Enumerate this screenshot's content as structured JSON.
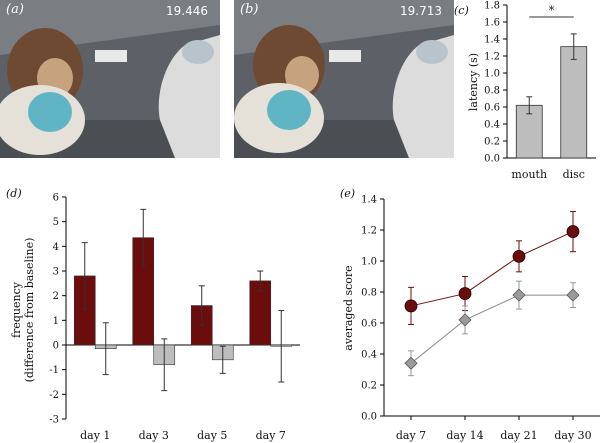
{
  "photos": [
    {
      "label": "(a)",
      "timestamp": "19.446"
    },
    {
      "label": "(b)",
      "timestamp": "19.713"
    }
  ],
  "colors": {
    "dark_red": "#6b0d0d",
    "grey": "#bdbdbd",
    "marker_grey": "#9a9a9a"
  },
  "chart_data": [
    {
      "panel": "(c)",
      "type": "bar",
      "categories": [
        "mouth",
        "disc"
      ],
      "values": [
        0.62,
        1.31
      ],
      "errors": [
        0.1,
        0.15
      ],
      "ylabel": "latency (s)",
      "ylim": [
        0,
        1.8
      ],
      "yticks": [
        0,
        0.2,
        0.4,
        0.6,
        0.8,
        1.0,
        1.2,
        1.4,
        1.6,
        1.8
      ],
      "annotation": "*"
    },
    {
      "panel": "(d)",
      "type": "bar",
      "categories": [
        "day 1",
        "day 3",
        "day 5",
        "day 7"
      ],
      "ylabel": "frequency",
      "ylabel2": "(difference from baseline)",
      "ylim": [
        -3,
        6
      ],
      "yticks": [
        -3,
        -2,
        -1,
        0,
        1,
        2,
        3,
        4,
        5,
        6
      ],
      "series": [
        {
          "color": "#6b0d0d",
          "values": [
            2.8,
            4.35,
            1.6,
            2.6
          ],
          "errors": [
            1.35,
            1.15,
            0.8,
            0.4
          ]
        },
        {
          "color": "#bdbdbd",
          "values": [
            -0.15,
            -0.8,
            -0.6,
            -0.05
          ],
          "errors": [
            1.05,
            1.05,
            0.55,
            1.45
          ]
        }
      ]
    },
    {
      "panel": "(e)",
      "type": "line",
      "categories": [
        "day 7",
        "day 14",
        "day 21",
        "day 30"
      ],
      "ylabel": "averaged score",
      "ylim": [
        0,
        1.4
      ],
      "yticks": [
        0,
        0.2,
        0.4,
        0.6,
        0.8,
        1.0,
        1.2,
        1.4
      ],
      "series": [
        {
          "marker": "circle",
          "color": "#6b0d0d",
          "values": [
            0.71,
            0.79,
            1.03,
            1.19
          ],
          "errors": [
            0.12,
            0.11,
            0.1,
            0.13
          ]
        },
        {
          "marker": "diamond",
          "color": "#9a9a9a",
          "values": [
            0.34,
            0.62,
            0.78,
            0.78
          ],
          "errors": [
            0.08,
            0.09,
            0.09,
            0.08
          ]
        }
      ]
    }
  ]
}
